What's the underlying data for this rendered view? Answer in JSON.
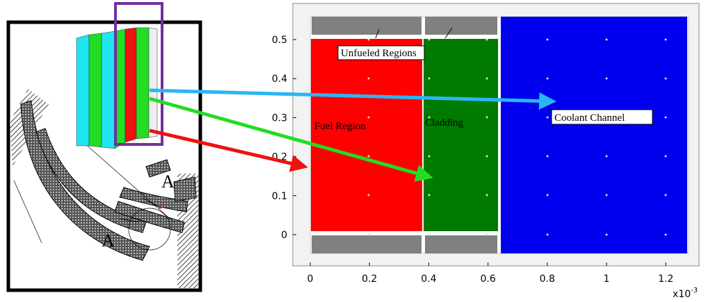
{
  "left_panel": {
    "section_labels": [
      "A",
      "A"
    ]
  },
  "plot": {
    "x_ticks": [
      "0",
      "0.2",
      "0.4",
      "0.6",
      "0.8",
      "1",
      "1.2"
    ],
    "x_exponent": {
      "base": "x10",
      "power": "-3"
    },
    "y_ticks": [
      "0",
      "0.1",
      "0.2",
      "0.3",
      "0.4",
      "0.5"
    ],
    "annotations": {
      "unfueled": "Unfueled Regions",
      "fuel": "Fuel Region",
      "cladding": "Cladding",
      "coolant": "Coolant Channel"
    }
  }
}
